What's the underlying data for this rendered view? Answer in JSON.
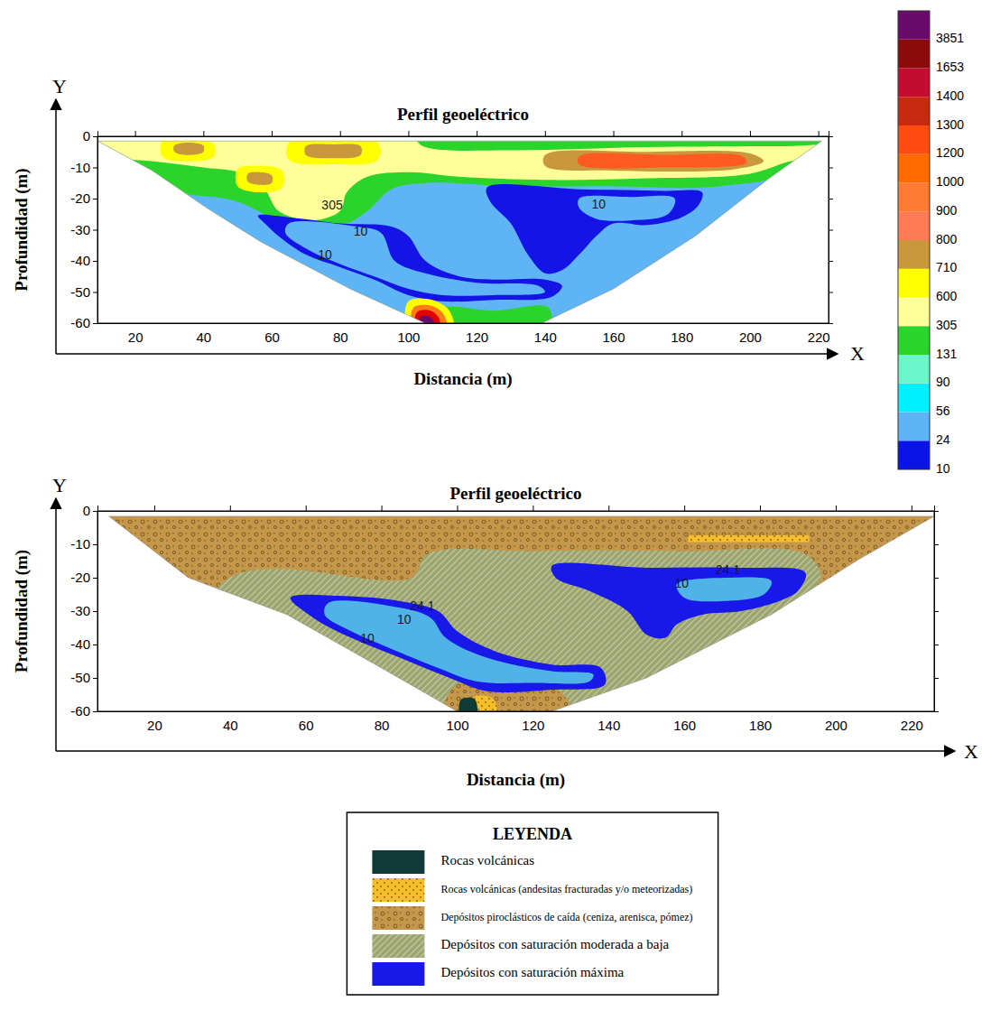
{
  "chart_data": [
    {
      "type": "contour",
      "title": "Perfil geoeléctrico",
      "xlabel": "Distancia (m)",
      "ylabel": "Profundidad (m)",
      "x_axis_name": "X",
      "y_axis_name": "Y",
      "xlim": [
        9,
        223
      ],
      "ylim": [
        -60,
        0
      ],
      "xticks": [
        20,
        40,
        60,
        80,
        100,
        120,
        140,
        160,
        180,
        200,
        220
      ],
      "yticks": [
        0,
        -10,
        -20,
        -30,
        -40,
        -50,
        -60
      ],
      "section": {
        "x": [
          9,
          221,
          205,
          184,
          160,
          139,
          105,
          83,
          57,
          41,
          25
        ],
        "y": [
          -1.5,
          -1.5,
          -14,
          -32,
          -49,
          -60,
          -60,
          -49,
          -34,
          -23,
          -11
        ]
      },
      "regions": [
        {
          "color": "#2bd42b",
          "x": [
            5,
            228,
            228,
            5
          ],
          "y": [
            0,
            0,
            -62,
            -62
          ]
        },
        {
          "color": "#ffff99",
          "x": [
            5,
            100,
            105,
            130,
            170,
            210,
            228,
            228,
            212,
            200,
            170,
            140,
            115,
            100,
            88,
            82,
            80,
            72,
            62,
            58,
            52,
            40,
            25,
            5
          ],
          "y": [
            0,
            0,
            -3.5,
            -4.5,
            -3.5,
            -3.2,
            -3.2,
            -5,
            -8,
            -12,
            -13.5,
            -14,
            -13,
            -11.5,
            -13,
            -18,
            -24,
            -27,
            -24,
            -17,
            -12,
            -10,
            -8,
            -5
          ]
        },
        {
          "color": "#5fb4f5",
          "x": [
            5,
            38,
            50,
            60,
            70,
            80,
            88,
            95,
            105,
            130,
            160,
            185,
            200,
            228,
            228,
            5
          ],
          "y": [
            -19,
            -19,
            -21,
            -26,
            -29,
            -29,
            -24,
            -17,
            -15,
            -16,
            -16,
            -16.5,
            -15,
            -12,
            -62,
            -62
          ]
        },
        {
          "color": "#ffff00",
          "x": [
            28,
            36,
            43,
            43,
            36,
            28
          ],
          "y": [
            -1.5,
            -1.2,
            -2.5,
            -6.5,
            -8,
            -6.5
          ]
        },
        {
          "color": "#ffff00",
          "x": [
            65,
            78,
            91,
            91,
            78,
            65
          ],
          "y": [
            -2,
            -1.2,
            -2,
            -7.5,
            -9,
            -7.5
          ]
        },
        {
          "color": "#ffff00",
          "x": [
            50,
            56,
            63,
            63,
            56,
            50
          ],
          "y": [
            -10.5,
            -9.5,
            -11,
            -16.5,
            -18,
            -16
          ]
        },
        {
          "color": "#c9973c",
          "x": [
            31.5,
            35.5,
            40,
            40,
            35.5,
            31.5
          ],
          "y": [
            -3,
            -2,
            -3,
            -5,
            -6,
            -5
          ]
        },
        {
          "color": "#c9973c",
          "x": [
            70,
            78,
            86,
            86,
            78,
            70
          ],
          "y": [
            -3.2,
            -2.6,
            -3.2,
            -6,
            -7,
            -6
          ]
        },
        {
          "color": "#c9973c",
          "x": [
            53,
            56.5,
            60,
            60,
            56.5,
            53
          ],
          "y": [
            -12,
            -11.5,
            -12.5,
            -15,
            -15.6,
            -14.5
          ]
        },
        {
          "color": "#c9973c",
          "x": [
            140,
            170,
            200,
            204,
            196,
            160,
            140
          ],
          "y": [
            -6,
            -5,
            -5.5,
            -8,
            -10.5,
            -11,
            -9.5
          ]
        },
        {
          "color": "#ff5a1f",
          "x": [
            150,
            175,
            198,
            199,
            175,
            150
          ],
          "y": [
            -6.5,
            -6,
            -6.5,
            -8.5,
            -10,
            -9
          ]
        },
        {
          "color": "#1414e6",
          "x": [
            56,
            65,
            80,
            95,
            100,
            105,
            115,
            125,
            140,
            145,
            142,
            125,
            110,
            100,
            90,
            80,
            70,
            62,
            58
          ],
          "y": [
            -25.5,
            -26,
            -28,
            -29,
            -32,
            -40,
            -45,
            -46,
            -46,
            -48,
            -51.5,
            -52.5,
            -53,
            -51,
            -46,
            -42,
            -38,
            -32,
            -28
          ]
        },
        {
          "color": "#5fb4f5",
          "x": [
            65,
            85,
            92,
            96,
            105,
            120,
            138,
            140,
            125,
            110,
            100,
            90,
            80,
            70,
            64
          ],
          "y": [
            -28,
            -29,
            -31,
            -40,
            -44,
            -47,
            -48,
            -50,
            -51,
            -51,
            -49,
            -45,
            -41,
            -36,
            -31
          ]
        },
        {
          "color": "#1414e6",
          "x": [
            123,
            150,
            175,
            186,
            185,
            180,
            170,
            160,
            155,
            150,
            145,
            140,
            135,
            130,
            124
          ],
          "y": [
            -16.5,
            -17,
            -17.5,
            -18,
            -22,
            -26,
            -28.5,
            -28,
            -32,
            -38,
            -43,
            -44,
            -38,
            -28,
            -21
          ]
        },
        {
          "color": "#5fb4f5",
          "x": [
            150,
            165,
            178,
            176,
            165,
            155,
            150
          ],
          "y": [
            -20,
            -19.5,
            -20,
            -25,
            -27,
            -26.5,
            -23
          ]
        },
        {
          "color": "#2bd42b",
          "x": [
            110,
            125,
            141,
            141,
            110
          ],
          "y": [
            -55.5,
            -56,
            -55,
            -62,
            -62
          ]
        },
        {
          "color": "#ffff00",
          "x": [
            100,
            107,
            112,
            113,
            100
          ],
          "y": [
            -53,
            -52.5,
            -56,
            -62,
            -62
          ]
        },
        {
          "color": "#ff7a1a",
          "x": [
            101.5,
            107,
            110.5,
            111,
            101.5
          ],
          "y": [
            -55,
            -54.5,
            -57.5,
            -62,
            -62
          ]
        },
        {
          "color": "#e00000",
          "x": [
            102.5,
            106.5,
            109,
            109,
            102.5
          ],
          "y": [
            -56.5,
            -56,
            -58.5,
            -62,
            -62
          ]
        },
        {
          "color": "#6a0a6a",
          "x": [
            103.5,
            106,
            107.5,
            107.5,
            103.5
          ],
          "y": [
            -58,
            -57.8,
            -59.5,
            -62,
            -62
          ]
        }
      ],
      "annotations": [
        {
          "text": "305",
          "x": 77.7,
          "y": -22.3
        },
        {
          "text": "10",
          "x": 86,
          "y": -30.7
        },
        {
          "text": "10",
          "x": 75.6,
          "y": -38.3
        },
        {
          "text": "10",
          "x": 155.7,
          "y": -22
        }
      ],
      "colorbar": {
        "ticks": [
          10,
          24,
          56,
          90,
          131,
          305,
          600,
          710,
          800,
          900,
          1000,
          1200,
          1300,
          1400,
          1653,
          3851
        ],
        "colors": [
          "#0a14e6",
          "#5fb4f5",
          "#00f0ff",
          "#6cf5c8",
          "#2bd42b",
          "#ffff99",
          "#ffff00",
          "#c9973c",
          "#ff7a55",
          "#ff7a33",
          "#ff6a00",
          "#ff4a10",
          "#c82a10",
          "#c40c30",
          "#8b0a0a",
          "#6a0a6a"
        ]
      }
    },
    {
      "type": "contour",
      "title": "Perfil geoeléctrico",
      "xlabel": "Distancia (m)",
      "ylabel": "Profundidad (m)",
      "x_axis_name": "X",
      "y_axis_name": "Y",
      "xlim": [
        5,
        226
      ],
      "ylim": [
        -60,
        0
      ],
      "xticks": [
        20,
        40,
        60,
        80,
        100,
        120,
        140,
        160,
        180,
        200,
        220
      ],
      "yticks": [
        0,
        -10,
        -20,
        -30,
        -40,
        -50,
        -60
      ],
      "section": {
        "x": [
          8,
          226,
          206,
          183,
          150,
          125,
          100,
          80,
          55,
          29
        ],
        "y": [
          -1.6,
          -1.6,
          -14.6,
          -31,
          -50,
          -60,
          -60,
          -47,
          -31,
          -20
        ]
      },
      "legend": "bottom",
      "legend_title": "LEYENDA",
      "series": [
        {
          "name": "Rocas volcánicas",
          "color": "#0f3a38"
        },
        {
          "name": "Rocas volcánicas (andesitas fracturadas y/o meteorizadas)",
          "color": "#f3c02c"
        },
        {
          "name": "Depósitos piroclásticos de caída (ceniza, arenisca, pómez)",
          "color": "#c4974a"
        },
        {
          "name": "Depósitos con saturación moderada a baja",
          "color": "#9ca56d"
        },
        {
          "name": "Depósitos con saturación máxima",
          "color": "#1818e8"
        }
      ],
      "regions": [
        {
          "series": 2,
          "x": [
            5,
            228,
            228,
            5
          ],
          "y": [
            0,
            0,
            -62,
            -62
          ]
        },
        {
          "series": 3,
          "x": [
            40,
            88,
            92,
            120,
            160,
            192,
            196,
            185,
            165,
            148,
            135,
            132,
            20
          ],
          "y": [
            -20,
            -20,
            -13,
            -12,
            -12,
            -13,
            -20,
            -30,
            -42,
            -52,
            -60,
            -64,
            -64
          ]
        },
        {
          "series": 2,
          "x": [
            100,
            115,
            125,
            130,
            130,
            96
          ],
          "y": [
            -52,
            -51,
            -52.5,
            -58,
            -64,
            -64
          ]
        },
        {
          "series": 4,
          "x": [
            56,
            70,
            85,
            95,
            100,
            110,
            125,
            138,
            139,
            125,
            108,
            98,
            85,
            72,
            62
          ],
          "y": [
            -26,
            -25.5,
            -27,
            -30,
            -36,
            -42,
            -46,
            -47,
            -52,
            -53.5,
            -54,
            -50,
            -44,
            -38,
            -32
          ]
        },
        {
          "series": 4,
          "color": "#4fb3e8",
          "x": [
            66,
            85,
            93,
            97,
            108,
            125,
            136,
            135,
            120,
            105,
            95,
            82,
            72,
            65
          ],
          "y": [
            -27.5,
            -29,
            -32,
            -38,
            -44,
            -48,
            -49,
            -51,
            -51.5,
            -51,
            -47,
            -41,
            -36,
            -31
          ]
        },
        {
          "series": 4,
          "x": [
            125,
            150,
            175,
            192,
            190,
            185,
            175,
            165,
            158,
            155,
            150,
            145,
            135,
            126
          ],
          "y": [
            -16.5,
            -17,
            -17,
            -18.5,
            -24,
            -27,
            -30,
            -31,
            -34,
            -38,
            -37,
            -30,
            -24,
            -20
          ]
        },
        {
          "series": 4,
          "color": "#4fb3e8",
          "x": [
            158,
            172,
            183,
            181,
            170,
            160
          ],
          "y": [
            -22,
            -20,
            -21,
            -25,
            -27,
            -26
          ]
        },
        {
          "series": 1,
          "x": [
            161,
            193,
            193,
            161
          ],
          "y": [
            -7.3,
            -7.3,
            -9.3,
            -9.3
          ]
        },
        {
          "series": 1,
          "x": [
            104,
            108,
            110,
            110,
            104
          ],
          "y": [
            -56,
            -55.5,
            -57,
            -62,
            -62
          ]
        },
        {
          "series": 0,
          "x": [
            101,
            104,
            105,
            105,
            101
          ],
          "y": [
            -56.5,
            -56,
            -57,
            -62,
            -62
          ]
        }
      ],
      "annotations": [
        {
          "text": "24.1",
          "x": 171.5,
          "y": -17.8
        },
        {
          "text": "10",
          "x": 159.3,
          "y": -22
        },
        {
          "text": "24.1",
          "x": 90.8,
          "y": -28.6
        },
        {
          "text": "10",
          "x": 86,
          "y": -32.8
        },
        {
          "text": "10",
          "x": 76.3,
          "y": -38.4
        }
      ]
    }
  ]
}
